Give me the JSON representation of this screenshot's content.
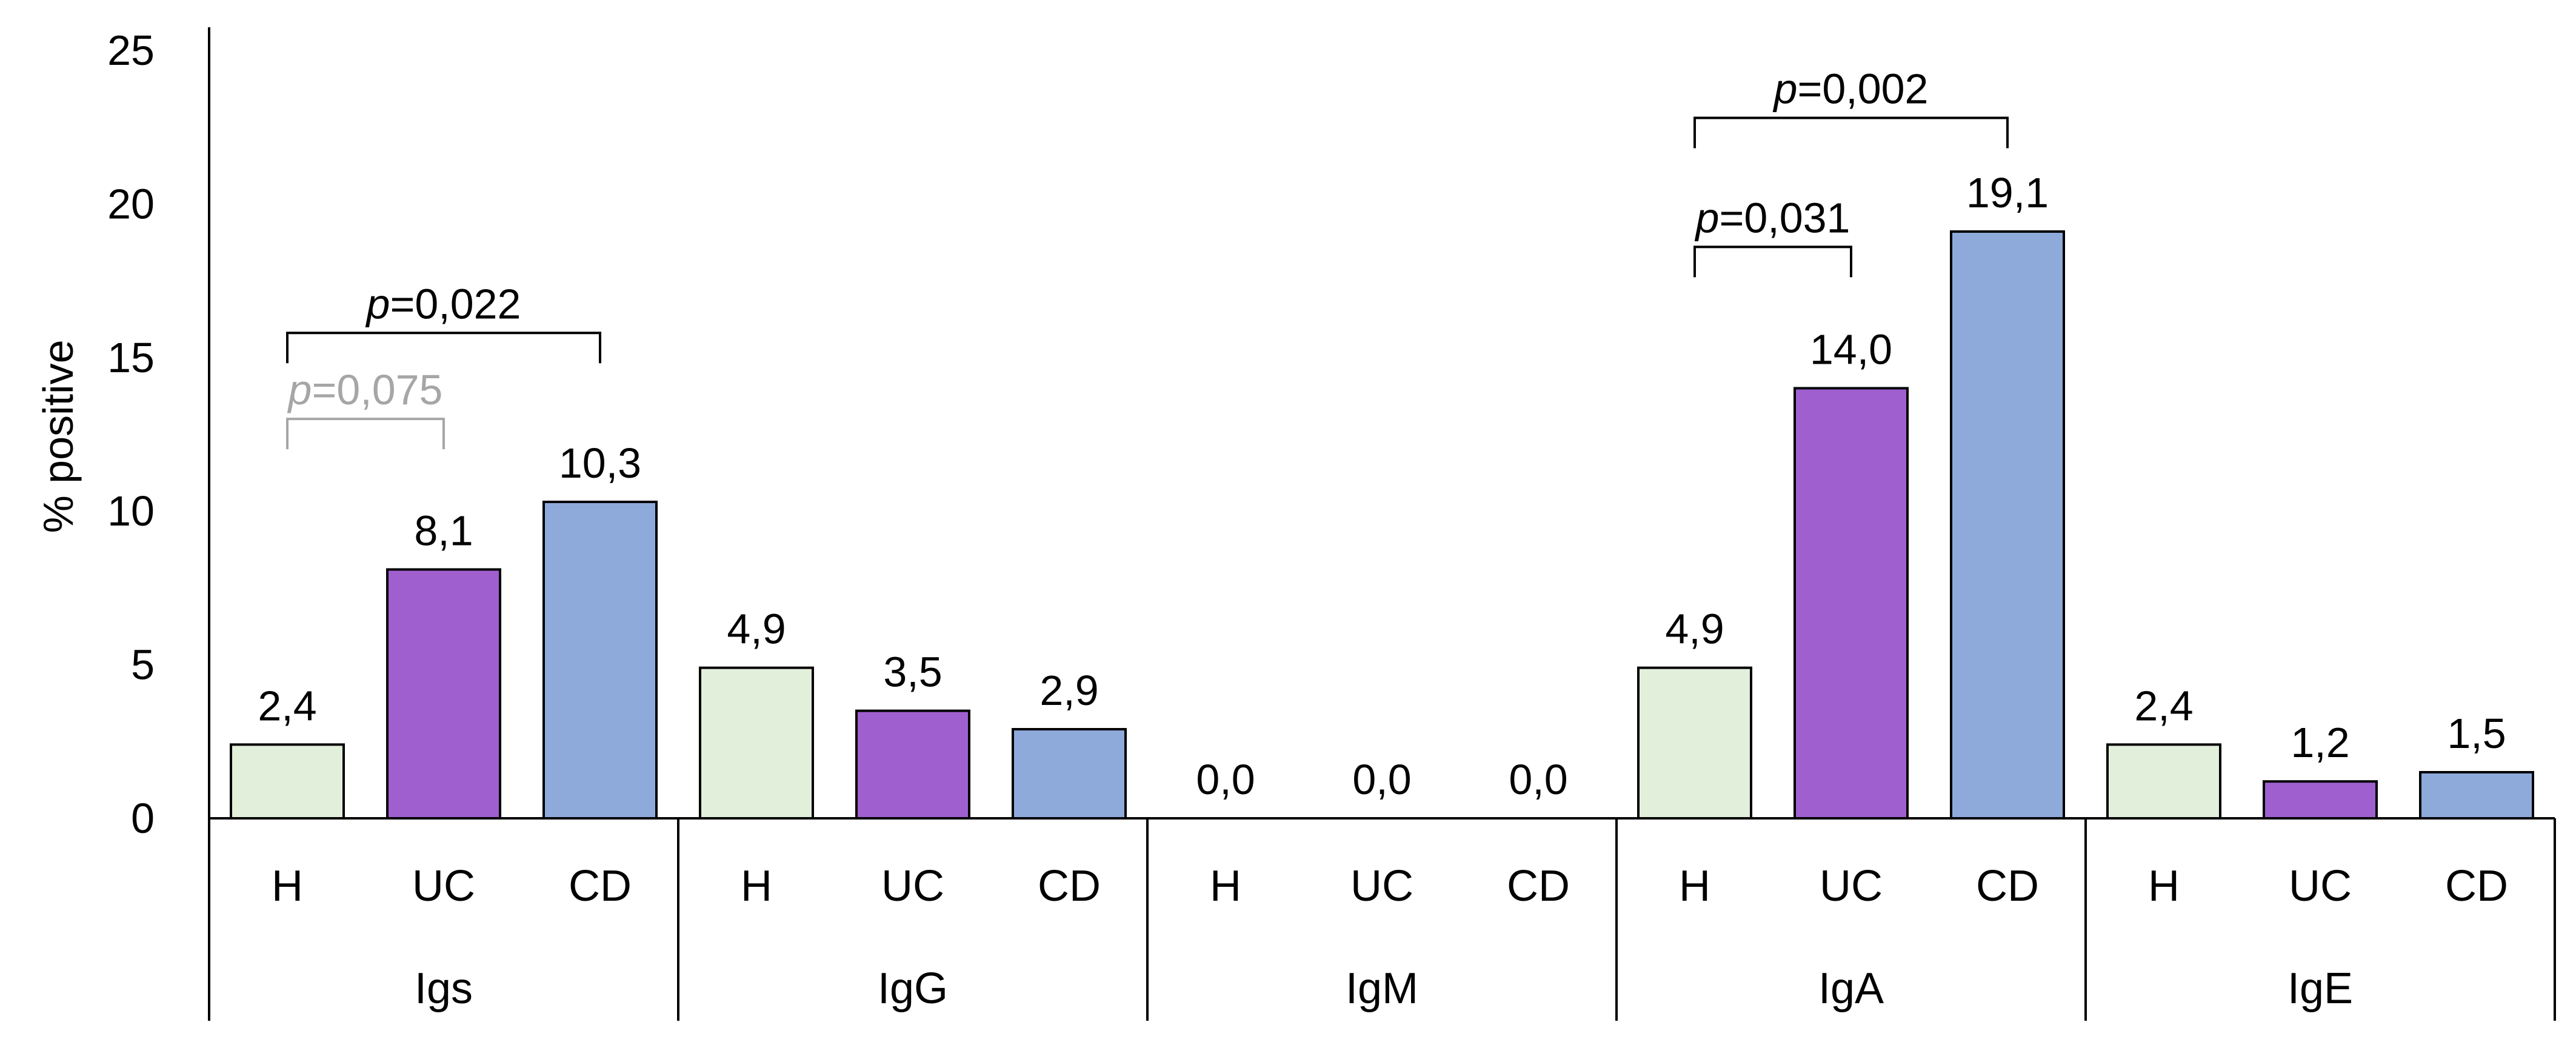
{
  "chart_data": {
    "type": "bar",
    "ylabel": "% positive",
    "ylim": [
      0,
      25
    ],
    "yticks": [
      "0",
      "5",
      "10",
      "15",
      "20",
      "25"
    ],
    "grid": false,
    "groups": [
      {
        "name": "Igs",
        "bars": [
          {
            "label": "H",
            "value": 2.4,
            "text": "2,4"
          },
          {
            "label": "UC",
            "value": 8.1,
            "text": "8,1"
          },
          {
            "label": "CD",
            "value": 10.3,
            "text": "10,3"
          }
        ]
      },
      {
        "name": "IgG",
        "bars": [
          {
            "label": "H",
            "value": 4.9,
            "text": "4,9"
          },
          {
            "label": "UC",
            "value": 3.5,
            "text": "3,5"
          },
          {
            "label": "CD",
            "value": 2.9,
            "text": "2,9"
          }
        ]
      },
      {
        "name": "IgM",
        "bars": [
          {
            "label": "H",
            "value": 0.0,
            "text": "0,0"
          },
          {
            "label": "UC",
            "value": 0.0,
            "text": "0,0"
          },
          {
            "label": "CD",
            "value": 0.0,
            "text": "0,0"
          }
        ]
      },
      {
        "name": "IgA",
        "bars": [
          {
            "label": "H",
            "value": 4.9,
            "text": "4,9"
          },
          {
            "label": "UC",
            "value": 14.0,
            "text": "14,0"
          },
          {
            "label": "CD",
            "value": 19.1,
            "text": "19,1"
          }
        ]
      },
      {
        "name": "IgE",
        "bars": [
          {
            "label": "H",
            "value": 2.4,
            "text": "2,4"
          },
          {
            "label": "UC",
            "value": 1.2,
            "text": "1,2"
          },
          {
            "label": "CD",
            "value": 1.5,
            "text": "1,5"
          }
        ]
      }
    ],
    "colors": {
      "H": "#e2efda",
      "UC": "#a05fcf",
      "CD": "#8eaadb"
    },
    "significance": [
      {
        "group": 0,
        "from": 0,
        "to": 1,
        "p_value": "0,075",
        "level": 13.0,
        "color": "#a6a6a6"
      },
      {
        "group": 0,
        "from": 0,
        "to": 2,
        "p_value": "0,022",
        "level": 15.8,
        "color": "#000000"
      },
      {
        "group": 3,
        "from": 0,
        "to": 1,
        "p_value": "0,031",
        "level": 18.6,
        "color": "#000000"
      },
      {
        "group": 3,
        "from": 0,
        "to": 2,
        "p_value": "0,002",
        "level": 22.8,
        "color": "#000000"
      }
    ]
  }
}
